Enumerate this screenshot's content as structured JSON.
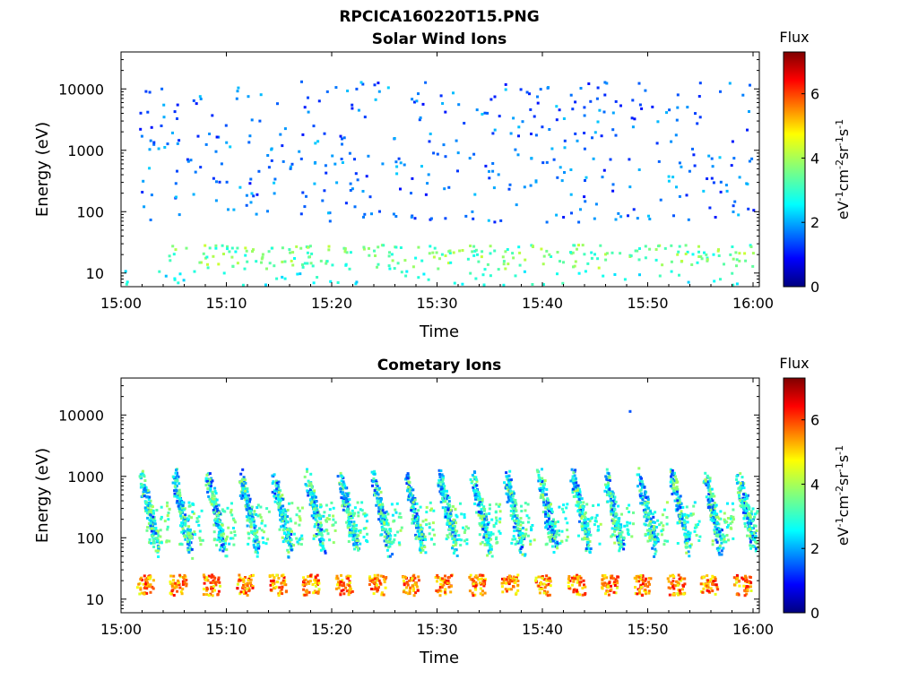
{
  "figure": {
    "filename": "RPCICA160220T15.PNG"
  },
  "chart_data": [
    {
      "type": "heatmap",
      "title": "Solar Wind Ions",
      "xlabel": "Time",
      "ylabel": "Energy (eV)",
      "x_range": [
        "15:00",
        "16:00"
      ],
      "x_ticks": [
        "15:00",
        "15:10",
        "15:20",
        "15:30",
        "15:40",
        "15:50",
        "16:00"
      ],
      "y_scale": "log",
      "y_range": [
        6,
        40000
      ],
      "y_ticks": [
        "10",
        "100",
        "1000",
        "10000"
      ],
      "colorbar": {
        "title": "Flux",
        "label": "eV-1cm-2sr-1s-1",
        "range": [
          0,
          7.3
        ],
        "ticks": [
          "0",
          "2",
          "4",
          "6"
        ],
        "colormap": "jet"
      },
      "pattern": "sparse scattered low-flux pixels (~1-3) across ~70 eV to 40 keV; moderate flux (~3-4) bands near 12-30 eV"
    },
    {
      "type": "heatmap",
      "title": "Cometary Ions",
      "xlabel": "Time",
      "ylabel": "Energy (eV)",
      "x_range": [
        "15:00",
        "16:00"
      ],
      "x_ticks": [
        "15:00",
        "15:10",
        "15:20",
        "15:30",
        "15:40",
        "15:50",
        "16:00"
      ],
      "y_scale": "log",
      "y_range": [
        6,
        40000
      ],
      "y_ticks": [
        "10",
        "100",
        "1000",
        "10000"
      ],
      "colorbar": {
        "title": "Flux",
        "label": "eV-1cm-2sr-1s-1",
        "range": [
          0,
          7.3
        ],
        "ticks": [
          "0",
          "2",
          "4",
          "6"
        ],
        "colormap": "jet"
      },
      "pattern": "periodic bursts about every 3.2 min; streaks from ~1000 eV down to ~80 eV with flux ~2-4; strong band at 12-25 eV with flux ~4.5-6.5"
    }
  ]
}
